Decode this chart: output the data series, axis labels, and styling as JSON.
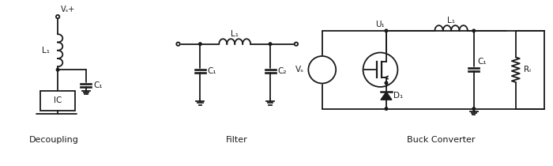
{
  "bg_color": "#ffffff",
  "line_color": "#1a1a1a",
  "text_color": "#1a1a1a",
  "title_decoupling": "Decoupling",
  "title_filter": "Filter",
  "title_buck": "Buck Converter",
  "label_L1": "L₁",
  "label_C1": "C₁",
  "label_C2": "C₂",
  "label_U1": "U₁",
  "label_D1": "D₁",
  "label_IC": "IC",
  "label_Vs": "Vₛ",
  "label_Vs_plus": "Vₛ+",
  "label_RL": "Rₗ",
  "fig_width": 7.0,
  "fig_height": 2.1
}
